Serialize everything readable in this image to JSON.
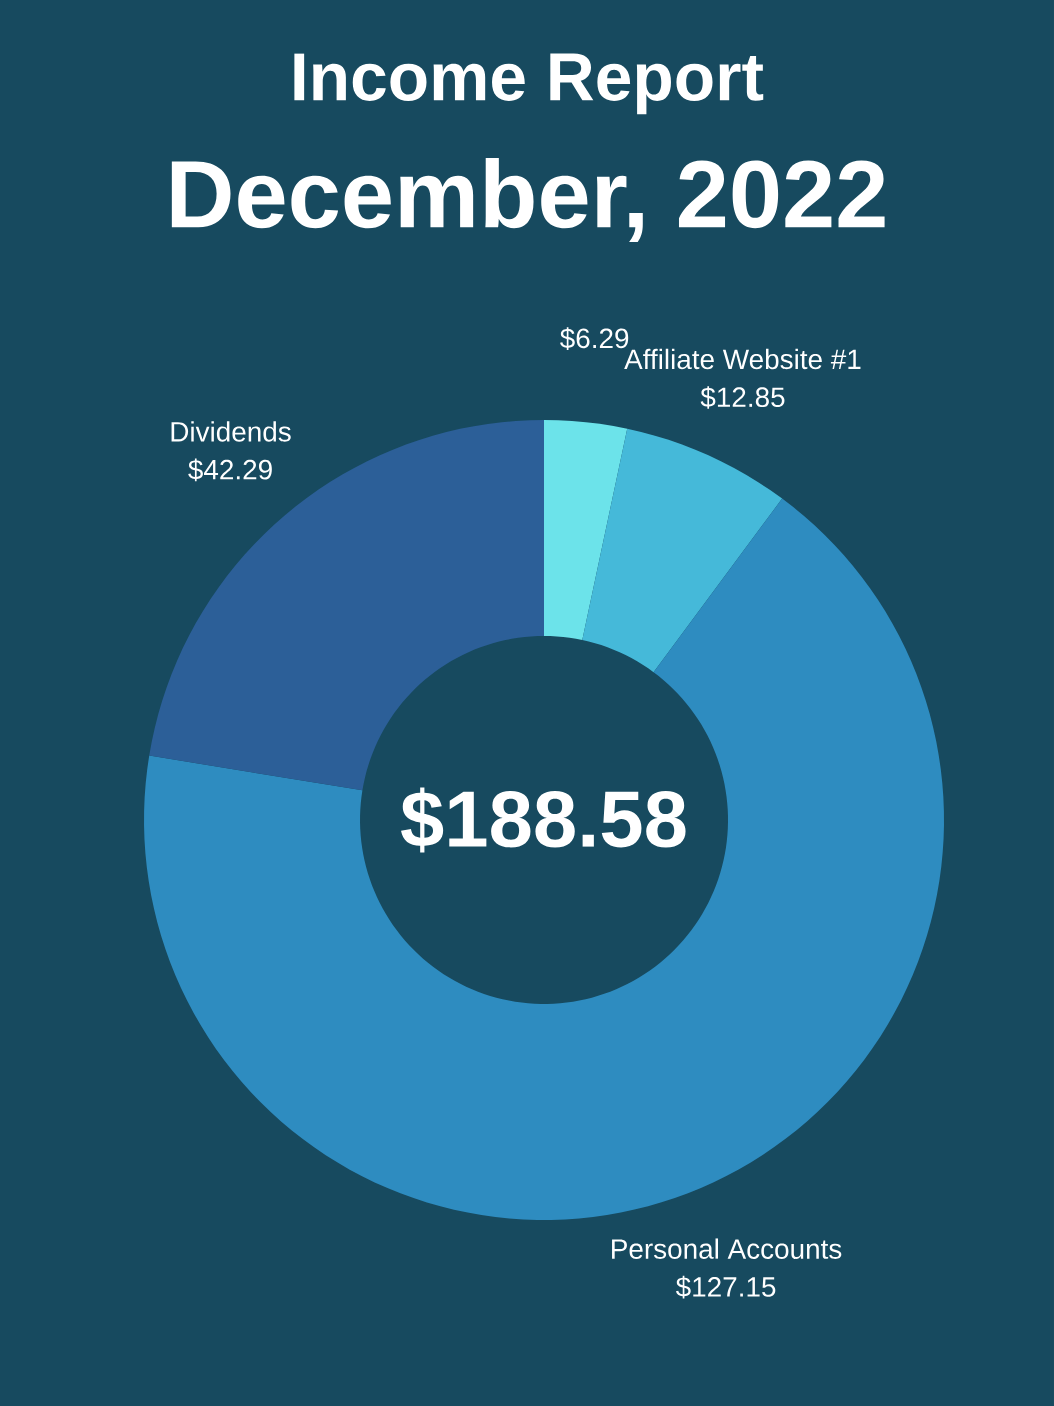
{
  "chart_data": {
    "type": "donut",
    "title": "Income Report",
    "subtitle": "December, 2022",
    "categories": [
      null,
      "Affiliate Website #1",
      "Personal Accounts",
      "Dividends"
    ],
    "values": [
      6.29,
      12.85,
      127.15,
      42.29
    ],
    "value_labels": [
      "$6.29",
      "$12.85",
      "$127.15",
      "$42.29"
    ],
    "colors": [
      "#6ce3ea",
      "#45b9d9",
      "#2e8cc0",
      "#2c5f98"
    ],
    "annotations": [
      "$188.58"
    ]
  }
}
